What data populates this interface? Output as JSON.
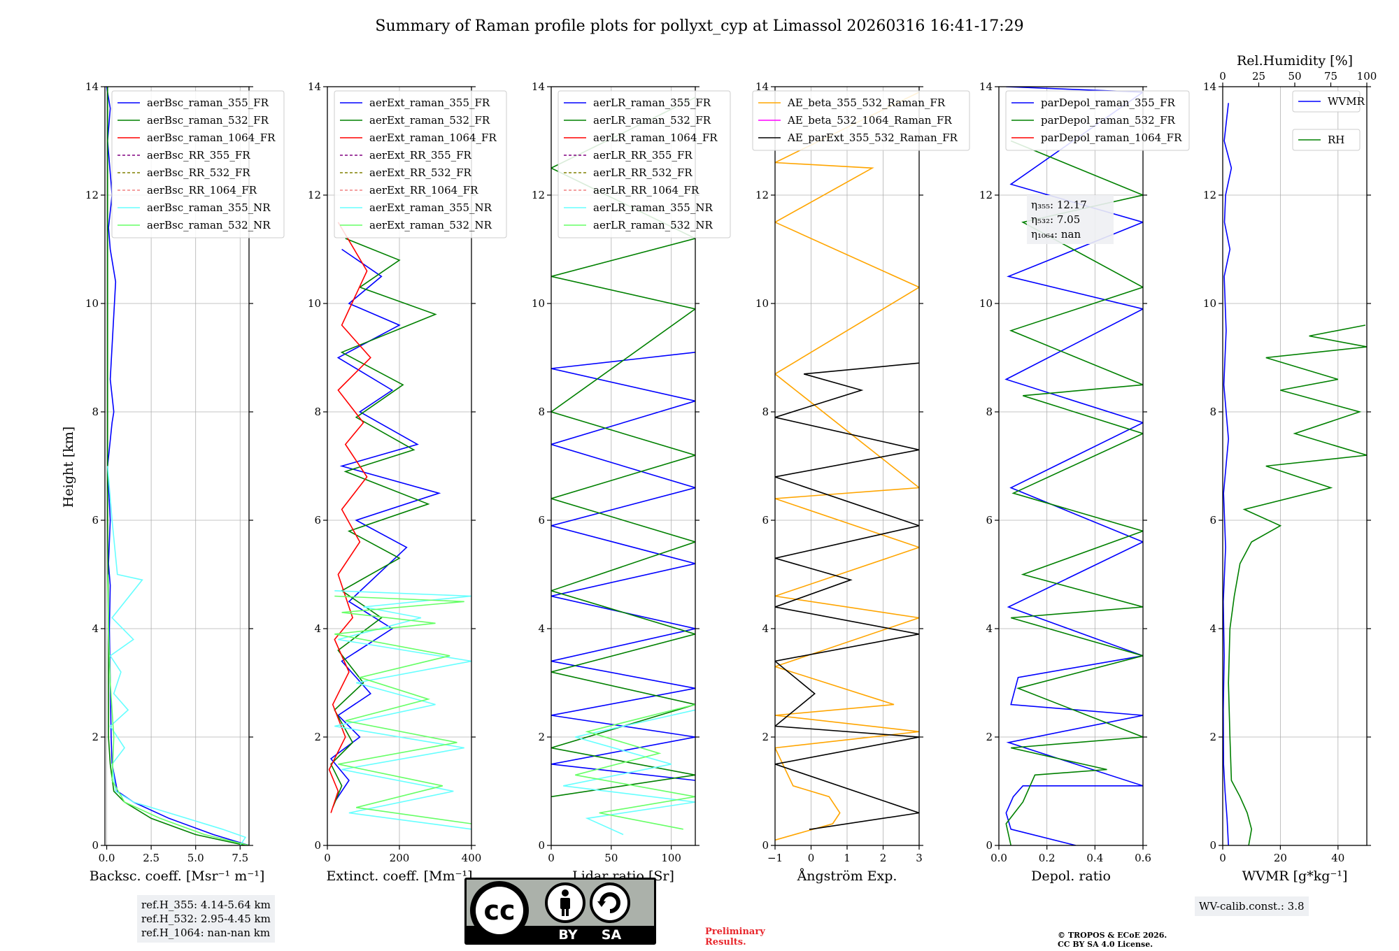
{
  "figure": {
    "title": "Summary of Raman profile plots for pollyxt_cyp at Limassol 20260316 16:41-17:29",
    "ylabel": "Height [km]",
    "ylim": [
      0,
      14
    ],
    "yticks": [
      0,
      2,
      4,
      6,
      8,
      10,
      12,
      14
    ]
  },
  "chart_data": [
    {
      "type": "line",
      "id": "backscatter",
      "xlabel": "Backsc. coeff. [Msr⁻¹ m⁻¹]",
      "xlim": [
        -0.1,
        8
      ],
      "xticks": [
        0,
        2.5,
        5,
        7.5
      ],
      "xticklabels": [
        "0.0",
        "2.5",
        "5.0",
        "7.5"
      ],
      "legend": [
        "aerBsc_raman_355_FR",
        "aerBsc_raman_532_FR",
        "aerBsc_raman_1064_FR",
        "aerBsc_RR_355_FR",
        "aerBsc_RR_532_FR",
        "aerBsc_RR_1064_FR",
        "aerBsc_raman_355_NR",
        "aerBsc_raman_532_NR"
      ],
      "legend_colors": [
        "#0000ff",
        "#008000",
        "#ff0000",
        "#800080",
        "#808000",
        "#f08080",
        "#66ffff",
        "#66ff66"
      ],
      "legend_dashed": [
        false,
        false,
        false,
        true,
        true,
        true,
        false,
        false
      ],
      "series": [
        {
          "name": "aerBsc_raman_355_FR",
          "color": "#0000ff",
          "x": [
            8.0,
            6.0,
            3.5,
            1.5,
            0.6,
            0.3,
            0.25,
            0.2,
            0.15,
            0.2,
            0.1,
            0.2,
            0.05,
            0.3,
            0.4,
            0.2,
            0.5,
            0.2,
            0.1,
            0.3,
            0.05,
            0.2,
            0.0
          ],
          "y": [
            0.0,
            0.2,
            0.5,
            0.8,
            1.0,
            1.5,
            2.0,
            3.0,
            4.0,
            4.8,
            5.2,
            6.0,
            7.0,
            7.8,
            8.0,
            8.6,
            10.4,
            11.0,
            11.4,
            12.0,
            13.0,
            13.6,
            14.0
          ]
        },
        {
          "name": "aerBsc_raman_532_FR",
          "color": "#008000",
          "x": [
            7.8,
            5.0,
            2.5,
            1.0,
            0.4,
            0.2,
            0.1,
            0.1,
            0.05,
            0.05,
            0.05
          ],
          "y": [
            0.0,
            0.2,
            0.5,
            0.8,
            1.0,
            1.5,
            2.0,
            4.0,
            6.0,
            10.0,
            14.0
          ]
        },
        {
          "name": "aerBsc_raman_355_NR",
          "color": "#66ffff",
          "x": [
            7.5,
            7.8,
            6.5,
            4.0,
            1.5,
            0.5,
            0.3,
            1.0,
            0.2,
            1.2,
            0.4,
            0.8,
            0.2,
            1.5,
            0.3,
            2.0,
            0.6,
            0.3,
            0.05
          ],
          "y": [
            0.0,
            0.15,
            0.3,
            0.55,
            0.8,
            1.0,
            1.5,
            1.8,
            2.2,
            2.5,
            2.8,
            3.2,
            3.5,
            3.8,
            4.2,
            4.9,
            5.0,
            6.0,
            7.0
          ]
        },
        {
          "name": "aerBsc_raman_532_NR",
          "color": "#66ff66",
          "x": [
            8.0,
            5.5,
            3.0,
            1.0,
            0.3,
            0.4,
            0.2,
            0.1,
            0.05
          ],
          "y": [
            0.0,
            0.2,
            0.5,
            0.8,
            1.2,
            2.0,
            3.0,
            4.0,
            5.0
          ]
        }
      ]
    },
    {
      "type": "line",
      "id": "extinction",
      "xlabel": "Extinct. coeff. [Mm⁻¹]",
      "xlim": [
        0,
        400
      ],
      "xticks": [
        0,
        200,
        400
      ],
      "xticklabels": [
        "0",
        "200",
        "400"
      ],
      "legend": [
        "aerExt_raman_355_FR",
        "aerExt_raman_532_FR",
        "aerExt_raman_1064_FR",
        "aerExt_RR_355_FR",
        "aerExt_RR_532_FR",
        "aerExt_RR_1064_FR",
        "aerExt_raman_355_NR",
        "aerExt_raman_532_NR"
      ],
      "legend_colors": [
        "#0000ff",
        "#008000",
        "#ff0000",
        "#800080",
        "#808000",
        "#f08080",
        "#66ffff",
        "#66ff66"
      ],
      "legend_dashed": [
        false,
        false,
        false,
        true,
        true,
        true,
        false,
        false
      ],
      "series": [
        {
          "name": "aerExt_raman_355_FR",
          "color": "#0000ff",
          "x": [
            20,
            60,
            10,
            90,
            30,
            120,
            40,
            180,
            60,
            220,
            80,
            310,
            40,
            250,
            90,
            180,
            30,
            200,
            60,
            150,
            40
          ],
          "y": [
            0.8,
            1.2,
            1.6,
            2.0,
            2.4,
            2.8,
            3.4,
            4.0,
            4.5,
            5.5,
            6.0,
            6.5,
            7.0,
            7.4,
            8.0,
            8.4,
            9.0,
            9.6,
            10.0,
            10.5,
            11.0
          ]
        },
        {
          "name": "aerExt_raman_532_FR",
          "color": "#008000",
          "x": [
            15,
            40,
            10,
            70,
            20,
            100,
            30,
            150,
            40,
            200,
            60,
            280,
            50,
            240,
            80,
            210,
            40,
            300,
            90,
            200,
            50
          ],
          "y": [
            0.7,
            1.1,
            1.5,
            1.9,
            2.5,
            3.0,
            3.6,
            4.2,
            4.7,
            5.3,
            5.8,
            6.3,
            6.9,
            7.3,
            7.9,
            8.5,
            9.1,
            9.8,
            10.3,
            10.8,
            11.2
          ]
        },
        {
          "name": "aerExt_raman_1064_FR",
          "color": "#ff0000",
          "x": [
            10,
            30,
            5,
            50,
            15,
            60,
            20,
            70,
            30,
            90,
            40,
            110,
            50,
            100,
            30,
            120,
            40,
            110,
            30
          ],
          "y": [
            0.6,
            1.0,
            1.4,
            2.0,
            2.6,
            3.2,
            3.8,
            4.2,
            5.0,
            5.6,
            6.2,
            6.8,
            7.4,
            7.8,
            8.4,
            9.0,
            9.6,
            10.6,
            11.5
          ]
        },
        {
          "name": "aerExt_raman_355_NR",
          "color": "#66ffff",
          "x": [
            400,
            60,
            350,
            40,
            380,
            20,
            300,
            80,
            400,
            30,
            260,
            100,
            400,
            20
          ],
          "y": [
            0.3,
            0.6,
            1.0,
            1.4,
            1.8,
            2.2,
            2.6,
            3.0,
            3.4,
            3.8,
            4.2,
            4.4,
            4.6,
            4.7
          ]
        },
        {
          "name": "aerExt_raman_532_NR",
          "color": "#66ff66",
          "x": [
            400,
            80,
            320,
            30,
            360,
            50,
            280,
            90,
            340,
            20,
            300,
            40,
            380,
            20
          ],
          "y": [
            0.4,
            0.7,
            1.1,
            1.5,
            1.9,
            2.3,
            2.7,
            3.1,
            3.5,
            3.9,
            4.1,
            4.3,
            4.5,
            4.6
          ]
        }
      ]
    },
    {
      "type": "line",
      "id": "lidar_ratio",
      "xlabel": "Lidar ratio [Sr]",
      "xlim": [
        0,
        120
      ],
      "xticks": [
        0,
        50,
        100
      ],
      "xticklabels": [
        "0",
        "50",
        "100"
      ],
      "legend": [
        "aerLR_raman_355_FR",
        "aerLR_raman_532_FR",
        "aerLR_raman_1064_FR",
        "aerLR_RR_355_FR",
        "aerLR_RR_532_FR",
        "aerLR_RR_1064_FR",
        "aerLR_raman_355_NR",
        "aerLR_raman_532_NR"
      ],
      "legend_colors": [
        "#0000ff",
        "#008000",
        "#ff0000",
        "#800080",
        "#808000",
        "#f08080",
        "#66ffff",
        "#66ff66"
      ],
      "legend_dashed": [
        false,
        false,
        false,
        true,
        true,
        true,
        false,
        false
      ],
      "series": [
        {
          "name": "aerLR_raman_355_FR",
          "color": "#0000ff",
          "x": [
            120,
            0,
            120,
            0,
            120,
            0,
            120,
            0,
            120,
            0,
            120,
            0,
            120,
            0,
            120
          ],
          "y": [
            1.2,
            1.5,
            2.0,
            2.4,
            2.9,
            3.4,
            4.0,
            4.6,
            5.2,
            5.9,
            6.6,
            7.4,
            8.2,
            8.8,
            9.1
          ]
        },
        {
          "name": "aerLR_raman_532_FR",
          "color": "#008000",
          "x": [
            0,
            120,
            0,
            120,
            0,
            120,
            0,
            120,
            0,
            120,
            0,
            120,
            0,
            120,
            0,
            120
          ],
          "y": [
            0.9,
            1.3,
            1.8,
            2.6,
            3.2,
            3.9,
            4.7,
            5.6,
            6.4,
            7.2,
            8.0,
            9.9,
            10.5,
            11.2,
            12.5,
            13.8
          ]
        },
        {
          "name": "aerLR_raman_355_NR",
          "color": "#66ffff",
          "x": [
            60,
            30,
            120,
            10,
            100,
            20,
            120
          ],
          "y": [
            0.2,
            0.5,
            0.8,
            1.1,
            1.5,
            2.0,
            2.5
          ]
        },
        {
          "name": "aerLR_raman_532_NR",
          "color": "#66ff66",
          "x": [
            110,
            40,
            120,
            20,
            90,
            30,
            120
          ],
          "y": [
            0.3,
            0.6,
            0.9,
            1.3,
            1.7,
            2.1,
            2.6
          ]
        }
      ]
    },
    {
      "type": "line",
      "id": "angstrom",
      "xlabel": "Ångström Exp.",
      "xlim": [
        -1,
        3
      ],
      "xticks": [
        -1,
        0,
        1,
        2,
        3
      ],
      "xticklabels": [
        "−1",
        "0",
        "1",
        "2",
        "3"
      ],
      "legend": [
        "AE_beta_355_532_Raman_FR",
        "AE_beta_532_1064_Raman_FR",
        "AE_parExt_355_532_Raman_FR"
      ],
      "legend_colors": [
        "#ffa500",
        "#ff00ff",
        "#000000"
      ],
      "legend_dashed": [
        false,
        false,
        false
      ],
      "series": [
        {
          "name": "AE_beta_355_532_Raman_FR",
          "color": "#ffa500",
          "x": [
            -1.0,
            0.6,
            0.8,
            0.5,
            -0.5,
            -1.0,
            3.0,
            -1.0,
            2.3,
            -1.0,
            3.0,
            -1.0,
            3.0,
            -1.0,
            3.0,
            -1.0,
            3.0,
            -1.0,
            1.7,
            -1.0,
            3.0
          ],
          "y": [
            0.1,
            0.4,
            0.6,
            0.9,
            1.1,
            1.8,
            2.1,
            2.4,
            2.6,
            3.3,
            4.2,
            4.6,
            5.5,
            6.4,
            6.6,
            8.7,
            10.3,
            11.5,
            12.5,
            12.6,
            13.9
          ]
        },
        {
          "name": "AE_parExt_355_532_Raman_FR",
          "color": "#000000",
          "x": [
            -0.05,
            0.0,
            3.0,
            -1.0,
            3.0,
            -1.0,
            0.1,
            -1.0,
            3.0,
            -1.0,
            1.1,
            -1.0,
            3.0,
            -1.0,
            3.0,
            -1.0,
            1.4,
            -0.2,
            3.0
          ],
          "y": [
            0.3,
            0.3,
            0.6,
            1.5,
            2.0,
            2.2,
            2.8,
            3.4,
            3.9,
            4.4,
            4.9,
            5.3,
            5.9,
            6.8,
            7.3,
            7.9,
            8.4,
            8.7,
            8.9
          ]
        }
      ]
    },
    {
      "type": "line",
      "id": "depolarization",
      "xlabel": "Depol. ratio",
      "xlim": [
        0,
        0.6
      ],
      "xticks": [
        0,
        0.2,
        0.4,
        0.6
      ],
      "xticklabels": [
        "0.0",
        "0.2",
        "0.4",
        "0.6"
      ],
      "legend": [
        "parDepol_raman_355_FR",
        "parDepol_raman_532_FR",
        "parDepol_raman_1064_FR"
      ],
      "legend_colors": [
        "#0000ff",
        "#008000",
        "#ff0000"
      ],
      "legend_dashed": [
        false,
        false,
        false
      ],
      "annotation": [
        "η₃₅₅: 12.17",
        "η₅₃₂: 7.05",
        "η₁₀₆₄: nan"
      ],
      "series": [
        {
          "name": "parDepol_raman_355_FR",
          "color": "#0000ff",
          "x": [
            0.32,
            0.05,
            0.03,
            0.06,
            0.1,
            0.6,
            0.04,
            0.6,
            0.05,
            0.08,
            0.6,
            0.04,
            0.6,
            0.05,
            0.6,
            0.03,
            0.6,
            0.04,
            0.6,
            0.05,
            0.6,
            0.03
          ],
          "y": [
            0.0,
            0.3,
            0.6,
            0.9,
            1.1,
            1.1,
            1.9,
            2.4,
            2.6,
            3.1,
            3.5,
            4.4,
            5.6,
            6.6,
            7.8,
            8.6,
            9.9,
            10.5,
            11.5,
            12.2,
            13.9,
            14.0
          ]
        },
        {
          "name": "parDepol_raman_532_FR",
          "color": "#008000",
          "x": [
            0.05,
            0.03,
            0.1,
            0.15,
            0.45,
            0.05,
            0.6,
            0.08,
            0.6,
            0.05,
            0.6,
            0.1,
            0.6,
            0.06,
            0.6,
            0.1,
            0.6,
            0.05,
            0.6,
            0.1,
            0.6,
            0.05
          ],
          "y": [
            0.0,
            0.4,
            0.8,
            1.3,
            1.4,
            1.8,
            2.0,
            2.9,
            3.5,
            4.2,
            4.4,
            5.0,
            5.8,
            6.5,
            7.6,
            8.3,
            8.5,
            9.5,
            10.3,
            11.5,
            12.0,
            13.0
          ]
        }
      ]
    },
    {
      "type": "line",
      "id": "wvmr_rh",
      "xlabel": "WVMR [g*kg⁻¹]",
      "xlim": [
        0,
        50
      ],
      "xticks": [
        0,
        20,
        40
      ],
      "xticklabels": [
        "0",
        "20",
        "40"
      ],
      "top_label": "Rel.Humidity [%]",
      "top_xlim": [
        0,
        100
      ],
      "top_xticks": [
        0,
        25,
        50,
        75,
        100
      ],
      "top_xticklabels": [
        "0",
        "25",
        "50",
        "75",
        "100"
      ],
      "legend": [
        "WVMR",
        "RH"
      ],
      "legend_colors": [
        "#0000ff",
        "#008000"
      ],
      "legend_dashed": [
        false,
        false
      ],
      "series": [
        {
          "name": "WVMR",
          "axis": "bottom",
          "color": "#0000ff",
          "x": [
            2.0,
            1.5,
            0.8,
            0.3,
            0.2,
            0.5,
            0.2,
            1.0,
            0.3,
            2.0,
            0.4,
            1.2,
            0.5,
            2.5,
            0.6,
            1.0,
            3.0,
            0.5,
            2.0
          ],
          "y": [
            0.0,
            0.5,
            1.0,
            1.5,
            2.5,
            3.5,
            4.5,
            5.5,
            6.5,
            7.5,
            8.5,
            9.5,
            10.5,
            11.0,
            11.5,
            12.0,
            12.5,
            13.0,
            13.7
          ]
        },
        {
          "name": "RH",
          "axis": "top",
          "color": "#008000",
          "x": [
            18,
            20,
            17,
            12,
            6,
            5,
            4,
            5,
            8,
            12,
            20,
            40,
            15,
            75,
            30,
            100,
            50,
            95,
            40,
            80,
            30,
            100,
            60,
            99
          ],
          "y": [
            0.0,
            0.3,
            0.6,
            0.9,
            1.2,
            2.0,
            3.0,
            4.0,
            4.6,
            5.2,
            5.6,
            5.9,
            6.2,
            6.6,
            7.0,
            7.2,
            7.6,
            8.0,
            8.4,
            8.6,
            9.0,
            9.2,
            9.4,
            9.6
          ]
        }
      ]
    }
  ],
  "footer": {
    "ref_lines": [
      "ref.H_355: 4.14-5.64 km",
      "ref.H_532: 2.95-4.45 km",
      "ref.H_1064: nan-nan km"
    ],
    "cc_text": "cc",
    "cc_by": "BY",
    "cc_sa": "SA",
    "preliminary": [
      "Preliminary",
      "Results."
    ],
    "copyright": [
      "© TROPOS & ECoE 2026.",
      "CC BY SA 4.0 License."
    ],
    "wv_calib": "WV-calib.const.: 3.8"
  }
}
